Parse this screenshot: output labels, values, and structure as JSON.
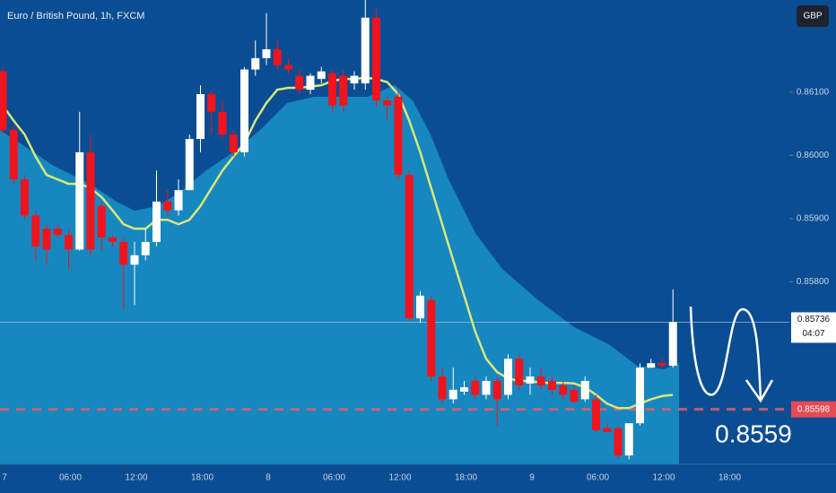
{
  "chart_data": {
    "type": "candlestick",
    "title": "Euro / British Pound, 1h, FXCM",
    "currency_button": "GBP",
    "open": [
      0.86133,
      0.8604,
      0.85962,
      0.85905,
      0.85884,
      0.85884,
      0.85874,
      0.85851,
      0.86005,
      0.8592,
      0.8587,
      0.85863,
      0.85827,
      0.85842,
      0.85863,
      0.85927,
      0.85913,
      0.85945,
      0.86026,
      0.86097,
      0.86069,
      0.86033,
      0.86005,
      0.86136,
      0.86154,
      0.86168,
      0.86143,
      0.86126,
      0.86104,
      0.86121,
      0.8613,
      0.86126,
      0.86114,
      0.86114,
      0.86218,
      0.86087,
      0.86093,
      0.85969,
      0.85742,
      0.85771,
      0.8565,
      0.85614,
      0.85626,
      0.85643,
      0.85621,
      0.85643,
      0.85621,
      0.85678,
      0.85639,
      0.8565,
      0.85643,
      0.85636,
      0.85629,
      0.85614,
      0.85614,
      0.85568,
      0.85568,
      0.85525,
      0.85576,
      0.85664,
      0.85671,
      0.85667
    ],
    "high": [
      0.8614,
      0.86047,
      0.85969,
      0.85913,
      0.85891,
      0.85891,
      0.85884,
      0.86069,
      0.86033,
      0.85927,
      0.85874,
      0.8587,
      0.85863,
      0.85884,
      0.85976,
      0.85945,
      0.85962,
      0.86033,
      0.86111,
      0.86104,
      0.86087,
      0.8604,
      0.8614,
      0.86182,
      0.86225,
      0.86182,
      0.86154,
      0.86136,
      0.8613,
      0.8614,
      0.86136,
      0.86136,
      0.86133,
      0.86246,
      0.86232,
      0.86093,
      0.86104,
      0.85976,
      0.85785,
      0.85778,
      0.85664,
      0.85664,
      0.85643,
      0.8565,
      0.8565,
      0.8565,
      0.85685,
      0.85685,
      0.85664,
      0.85664,
      0.8565,
      0.85643,
      0.85636,
      0.8565,
      0.85621,
      0.85576,
      0.85572,
      0.85576,
      0.85671,
      0.85678,
      0.85678,
      0.85788
    ],
    "low": [
      0.86033,
      0.85955,
      0.85898,
      0.85834,
      0.85827,
      0.8587,
      0.8582,
      0.85849,
      0.85842,
      0.85849,
      0.85856,
      0.85756,
      0.85763,
      0.85834,
      0.85856,
      0.85905,
      0.85905,
      0.85945,
      0.86005,
      0.86033,
      0.86026,
      0.85998,
      0.85998,
      0.86126,
      0.86143,
      0.86136,
      0.8613,
      0.86097,
      0.86097,
      0.86114,
      0.86069,
      0.86069,
      0.86104,
      0.86104,
      0.86076,
      0.86055,
      0.85962,
      0.85738,
      0.85735,
      0.85643,
      0.85607,
      0.85607,
      0.85621,
      0.85614,
      0.85614,
      0.85572,
      0.85614,
      0.85629,
      0.85621,
      0.85629,
      0.85621,
      0.85614,
      0.85607,
      0.8561,
      0.85562,
      0.85562,
      0.85519,
      0.85519,
      0.85572,
      0.85664,
      0.85664,
      0.85664
    ],
    "close": [
      0.8604,
      0.85962,
      0.85905,
      0.85856,
      0.85851,
      0.85874,
      0.85851,
      0.86005,
      0.85851,
      0.8587,
      0.85863,
      0.85827,
      0.85842,
      0.85863,
      0.85927,
      0.85913,
      0.85945,
      0.86026,
      0.86097,
      0.86069,
      0.86033,
      0.86005,
      0.86136,
      0.86154,
      0.86168,
      0.86143,
      0.86136,
      0.86104,
      0.86126,
      0.86133,
      0.86079,
      0.86079,
      0.86126,
      0.86218,
      0.86087,
      0.86079,
      0.85969,
      0.85742,
      0.85778,
      0.8565,
      0.85614,
      0.85629,
      0.85633,
      0.85621,
      0.85643,
      0.85614,
      0.85678,
      0.85636,
      0.8565,
      0.85636,
      0.85629,
      0.85621,
      0.8561,
      0.85643,
      0.85565,
      0.85562,
      0.85525,
      0.85576,
      0.85664,
      0.85671,
      0.85667,
      0.85736
    ],
    "up_color": "#ffffff",
    "down_color": "#f0141e",
    "moving_average": [
      0.86079,
      0.86055,
      0.86033,
      0.85998,
      0.85969,
      0.85962,
      0.85955,
      0.85955,
      0.85948,
      0.85934,
      0.85913,
      0.85891,
      0.85884,
      0.85884,
      0.85898,
      0.85898,
      0.85891,
      0.85898,
      0.8592,
      0.85948,
      0.85976,
      0.85998,
      0.86019,
      0.86055,
      0.86083,
      0.86104,
      0.86107,
      0.86107,
      0.86109,
      0.86111,
      0.86118,
      0.86121,
      0.86121,
      0.86123,
      0.86121,
      0.86116,
      0.86097,
      0.86055,
      0.86005,
      0.85948,
      0.85891,
      0.85834,
      0.85778,
      0.85721,
      0.85678,
      0.85657,
      0.85647,
      0.85643,
      0.85643,
      0.8564,
      0.8564,
      0.8564,
      0.85639,
      0.85633,
      0.85621,
      0.85607,
      0.856,
      0.856,
      0.85607,
      0.85614,
      0.85619,
      0.85621
    ],
    "moving_average_color": "#d8e87a",
    "ylim": [
      0.85511,
      0.86246
    ],
    "yticks": [
      {
        "value": 0.861,
        "label": "0.86100"
      },
      {
        "value": 0.86,
        "label": "0.86000"
      },
      {
        "value": 0.859,
        "label": "0.85900"
      },
      {
        "value": 0.858,
        "label": "0.85800"
      }
    ],
    "xtick_labels": [
      "7",
      "06:00",
      "12:00",
      "18:00",
      "8",
      "06:00",
      "12:00",
      "18:00",
      "9",
      "06:00",
      "12:00",
      "18:00"
    ],
    "current_price": {
      "value": 0.85736,
      "label": "0.85736"
    },
    "countdown": "04:07",
    "target_line": {
      "value": 0.85598,
      "label": "0.85598"
    },
    "annotation": "0.8559"
  }
}
